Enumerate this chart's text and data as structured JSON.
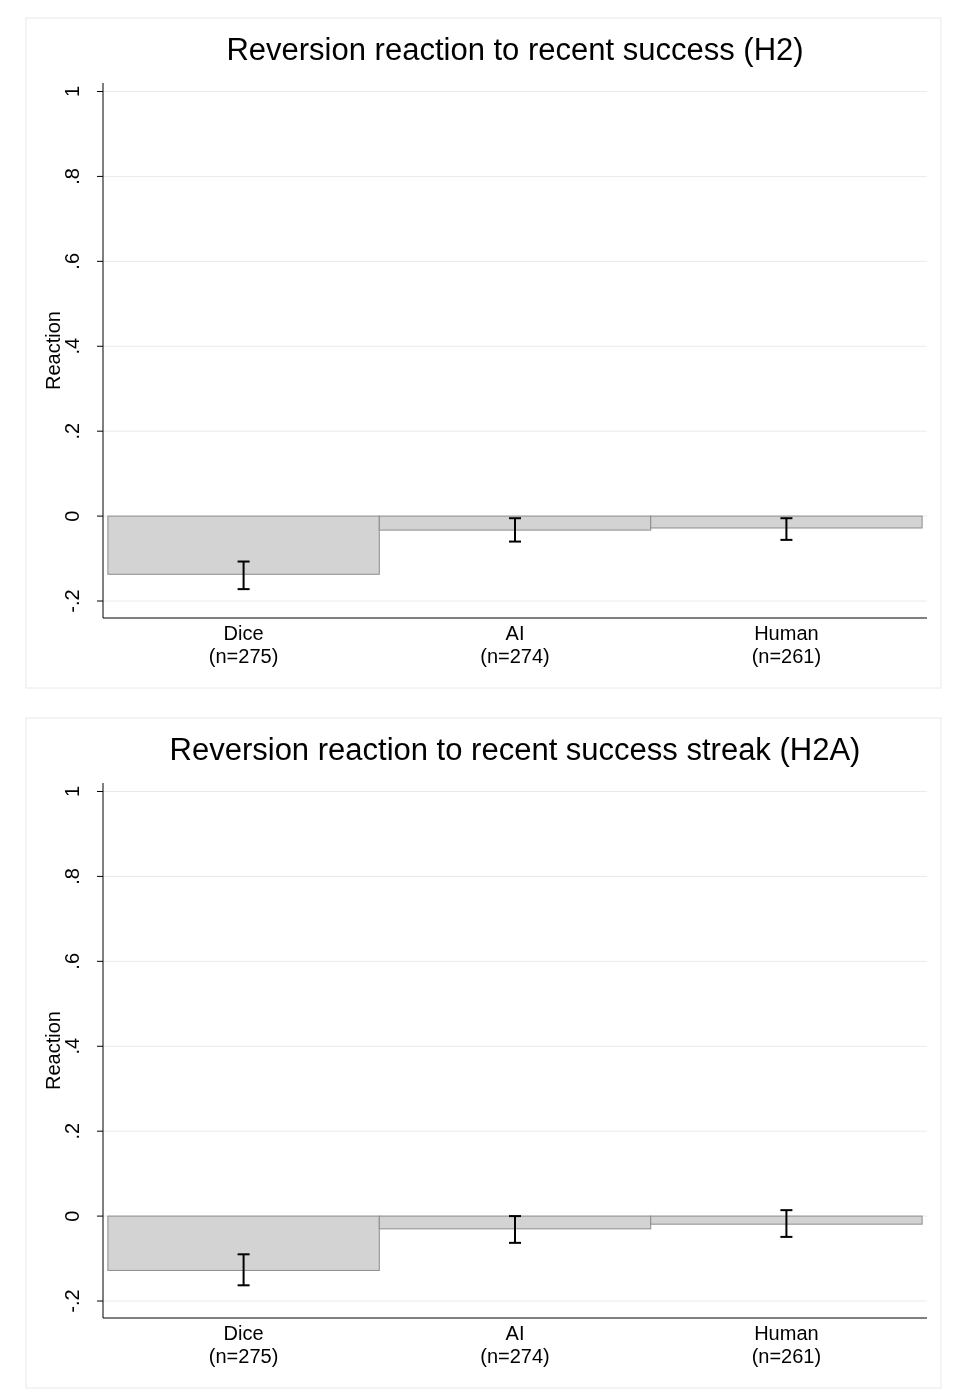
{
  "chart_data": [
    {
      "type": "bar",
      "title": "Reversion reaction to recent success (H2)",
      "ylabel": "Reaction",
      "categories": [
        "Dice\n(n=275)",
        "AI\n(n=274)",
        "Human\n(n=261)"
      ],
      "values": [
        -0.137,
        -0.033,
        -0.028
      ],
      "errors": [
        [
          -0.172,
          -0.107
        ],
        [
          -0.06,
          -0.005
        ],
        [
          -0.056,
          -0.005
        ]
      ],
      "color": "#d3d3d3",
      "ylim": [
        -0.24,
        1.02
      ],
      "yticks": [
        {
          "value": -0.2,
          "label": "-.2"
        },
        {
          "value": 0,
          "label": "0"
        },
        {
          "value": 0.2,
          "label": ".2"
        },
        {
          "value": 0.4,
          "label": ".4"
        },
        {
          "value": 0.6,
          "label": ".6"
        },
        {
          "value": 0.8,
          "label": ".8"
        },
        {
          "value": 1,
          "label": "1"
        }
      ],
      "grid": "y"
    },
    {
      "type": "bar",
      "title": "Reversion reaction to recent success streak (H2A)",
      "ylabel": "Reaction",
      "categories": [
        "Dice\n(n=275)",
        "AI\n(n=274)",
        "Human\n(n=261)"
      ],
      "values": [
        -0.128,
        -0.03,
        -0.019
      ],
      "errors": [
        [
          -0.163,
          -0.09
        ],
        [
          -0.063,
          0.0
        ],
        [
          -0.049,
          0.014
        ]
      ],
      "color": "#d3d3d3",
      "ylim": [
        -0.24,
        1.02
      ],
      "yticks": [
        {
          "value": -0.2,
          "label": "-.2"
        },
        {
          "value": 0,
          "label": "0"
        },
        {
          "value": 0.2,
          "label": ".2"
        },
        {
          "value": 0.4,
          "label": ".4"
        },
        {
          "value": 0.6,
          "label": ".6"
        },
        {
          "value": 0.8,
          "label": ".8"
        },
        {
          "value": 1,
          "label": "1"
        }
      ],
      "grid": "y"
    }
  ]
}
